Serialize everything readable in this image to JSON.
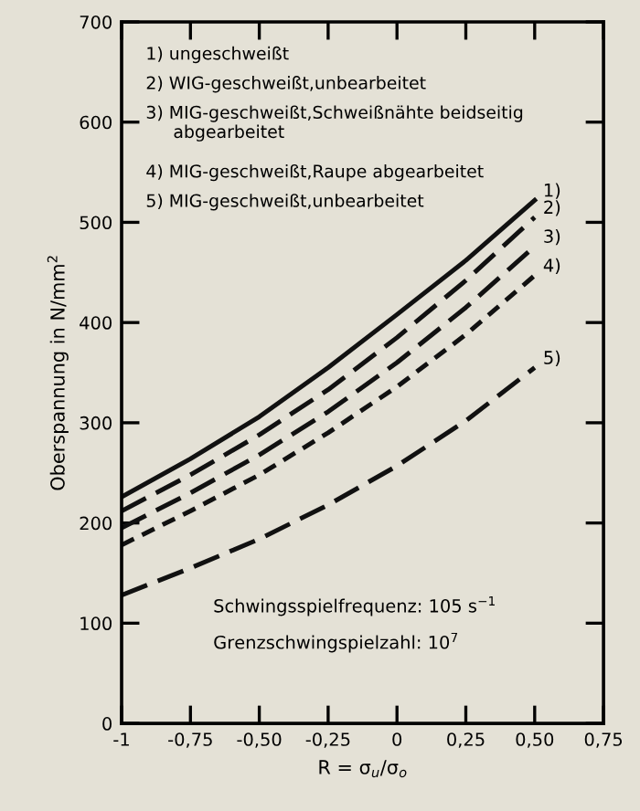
{
  "chart_data": {
    "type": "line",
    "xlabel": "R = σ$_{u}$/σ$_{o}$",
    "ylabel": "Oberspannung in N/mm$^{2}$",
    "x": [
      -1,
      -0.75,
      -0.5,
      -0.25,
      0,
      0.25,
      0.5
    ],
    "series": [
      {
        "name": "1)",
        "color": "#111111",
        "line_style": "solid",
        "values": [
          226,
          264,
          306,
          355,
          408,
          462,
          522
        ]
      },
      {
        "name": "2)",
        "color": "#111111",
        "line_style": "dashed",
        "values": [
          212,
          248,
          288,
          333,
          385,
          442,
          505
        ]
      },
      {
        "name": "3)",
        "color": "#111111",
        "line_style": "dashed",
        "values": [
          195,
          230,
          268,
          311,
          360,
          415,
          476
        ]
      },
      {
        "name": "4)",
        "color": "#111111",
        "line_style": "dotted",
        "values": [
          178,
          212,
          248,
          290,
          336,
          388,
          447
        ]
      },
      {
        "name": "5)",
        "color": "#111111",
        "line_style": "dashed",
        "values": [
          128,
          155,
          184,
          218,
          257,
          302,
          355
        ]
      }
    ],
    "xlim": [
      -1,
      0.75
    ],
    "ylim": [
      0,
      700
    ],
    "xticks": [
      -1,
      {
        "value": -0.75,
        "label": "-0,75"
      },
      {
        "value": -0.5,
        "label": "-0,50"
      },
      {
        "value": -0.25,
        "label": "-0,25"
      },
      0,
      {
        "value": 0.25,
        "label": "0,25"
      },
      {
        "value": 0.5,
        "label": "0,50"
      },
      {
        "value": 0.75,
        "label": "0,75"
      }
    ],
    "yticks": [
      0,
      100,
      200,
      300,
      400,
      500,
      600,
      700
    ],
    "grid": false,
    "legend": false,
    "marker": "none",
    "annotations": [
      "1) ungeschweißt",
      "2) WIG-geschweißt,unbearbeitet",
      "3) MIG-geschweißt,Schweißnähte beidseitig\n     abgearbeitet",
      "4) MIG-geschweißt,Raupe abgearbeitet",
      "5) MIG-geschweißt,unbearbeitet",
      "Schwingsspielfrequenz: 105 s$^{−1}$",
      "Grenzschwingspielzahl: 10$^{7}$"
    ]
  }
}
